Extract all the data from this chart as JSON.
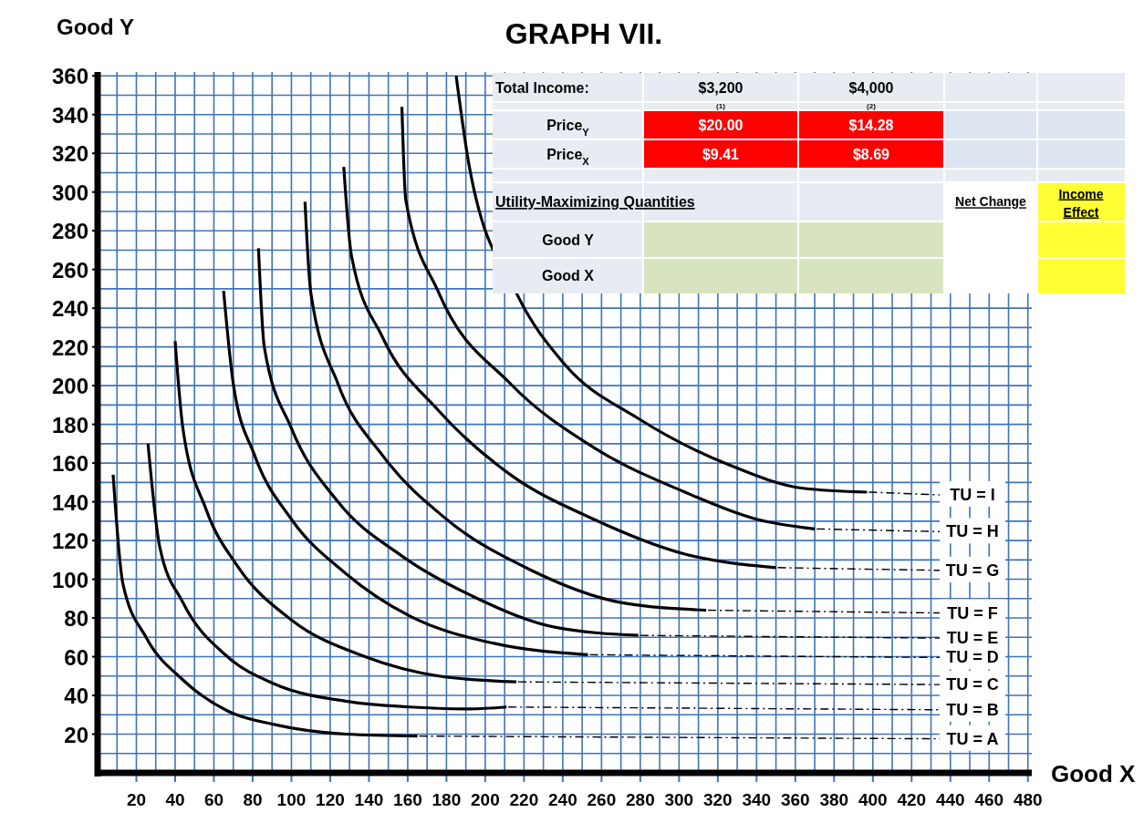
{
  "chart_data": [
    {
      "type": "line",
      "title": "GRAPH VII.",
      "xlabel": "Good X",
      "ylabel": "Good Y",
      "xlim": [
        0,
        482
      ],
      "ylim": [
        0,
        362
      ],
      "xticks": [
        {
          "value": 10,
          "label": null
        },
        20,
        {
          "value": 30,
          "label": null
        },
        40,
        {
          "value": 50,
          "label": null
        },
        60,
        {
          "value": 70,
          "label": null
        },
        80,
        {
          "value": 90,
          "label": null
        },
        100,
        {
          "value": 110,
          "label": null
        },
        120,
        {
          "value": 130,
          "label": null
        },
        140,
        {
          "value": 150,
          "label": null
        },
        160,
        {
          "value": 170,
          "label": null
        },
        180,
        {
          "value": 190,
          "label": null
        },
        200,
        {
          "value": 210,
          "label": null
        },
        220,
        {
          "value": 230,
          "label": null
        },
        240,
        {
          "value": 250,
          "label": null
        },
        260,
        {
          "value": 270,
          "label": null
        },
        280,
        {
          "value": 290,
          "label": null
        },
        300,
        {
          "value": 310,
          "label": null
        },
        320,
        {
          "value": 330,
          "label": null
        },
        340,
        {
          "value": 350,
          "label": null
        },
        360,
        {
          "value": 370,
          "label": null
        },
        380,
        {
          "value": 390,
          "label": null
        },
        400,
        {
          "value": 410,
          "label": null
        },
        420,
        {
          "value": 430,
          "label": null
        },
        440,
        {
          "value": 450,
          "label": null
        },
        460,
        {
          "value": 470,
          "label": null
        },
        480
      ],
      "yticks": [
        {
          "value": 10,
          "label": null
        },
        20,
        {
          "value": 30,
          "label": null
        },
        40,
        {
          "value": 50,
          "label": null
        },
        60,
        {
          "value": 70,
          "label": null
        },
        80,
        {
          "value": 90,
          "label": null
        },
        100,
        {
          "value": 110,
          "label": null
        },
        120,
        {
          "value": 130,
          "label": null
        },
        140,
        {
          "value": 150,
          "label": null
        },
        160,
        {
          "value": 170,
          "label": null
        },
        180,
        {
          "value": 190,
          "label": null
        },
        200,
        {
          "value": 210,
          "label": null
        },
        220,
        {
          "value": 230,
          "label": null
        },
        240,
        {
          "value": 250,
          "label": null
        },
        260,
        {
          "value": 270,
          "label": null
        },
        280,
        {
          "value": 290,
          "label": null
        },
        300,
        {
          "value": 310,
          "label": null
        },
        320,
        {
          "value": 330,
          "label": null
        },
        340,
        {
          "value": 350,
          "label": null
        },
        360
      ],
      "grid": true,
      "marker": "none",
      "line_style": "solid",
      "series": [
        {
          "name": "TU = A",
          "color": "#000000",
          "x": [
            8,
            13,
            25,
            44,
            67,
            91,
            128,
            165
          ],
          "values": [
            154,
            98,
            70,
            48,
            32,
            25,
            20,
            19
          ]
        },
        {
          "name": "TU = B",
          "color": "#000000",
          "x": [
            26,
            32,
            44,
            67,
            91,
            128,
            161,
            192,
            211
          ],
          "values": [
            170,
            117,
            88,
            60,
            46,
            37,
            34,
            33,
            34
          ]
        },
        {
          "name": "TU = C",
          "color": "#000000",
          "x": [
            40,
            44,
            56,
            72,
            100,
            138,
            176,
            216
          ],
          "values": [
            223,
            178,
            136,
            107,
            79,
            60,
            50,
            47
          ]
        },
        {
          "name": "TU = D",
          "color": "#000000",
          "x": [
            65,
            70,
            81,
            100,
            128,
            161,
            204,
            253
          ],
          "values": [
            249,
            201,
            164,
            131,
            103,
            81,
            67,
            61
          ]
        },
        {
          "name": "TU = E",
          "color": "#000000",
          "x": [
            83,
            86,
            100,
            124,
            157,
            194,
            237,
            279
          ],
          "values": [
            271,
            220,
            178,
            140,
            112,
            91,
            75,
            71
          ]
        },
        {
          "name": "TU = F",
          "color": "#000000",
          "x": [
            107,
            110,
            124,
            147,
            180,
            223,
            270,
            314
          ],
          "values": [
            295,
            248,
            201,
            164,
            131,
            105,
            88,
            84
          ]
        },
        {
          "name": "TU = G",
          "color": "#000000",
          "x": [
            127,
            131,
            147,
            176,
            213,
            256,
            303,
            350
          ],
          "values": [
            313,
            267,
            225,
            187,
            154,
            131,
            113,
            106
          ]
        },
        {
          "name": "TU = H",
          "color": "#000000",
          "x": [
            157,
            159,
            176,
            213,
            256,
            303,
            340,
            370
          ],
          "values": [
            344,
            296,
            248,
            201,
            168,
            145,
            131,
            126
          ]
        },
        {
          "name": "TU = I",
          "color": "#000000",
          "x": [
            185,
            192,
            216,
            241,
            279,
            326,
            364,
            397
          ],
          "values": [
            360,
            312,
            248,
            211,
            183,
            159,
            147,
            145
          ]
        }
      ]
    },
    {
      "type": "other",
      "annotations": [
        "Total Income:",
        "$3,200",
        "$4,000",
        "(1)",
        "(2)",
        "Price$_{Y}$",
        "$20.00",
        "$14.28",
        "Price$_{X}$",
        "$9.41",
        "$8.69",
        "Utility-Maximizing Quantities",
        "Net Change",
        "Income Effect",
        "Good Y",
        "Good X"
      ]
    }
  ]
}
